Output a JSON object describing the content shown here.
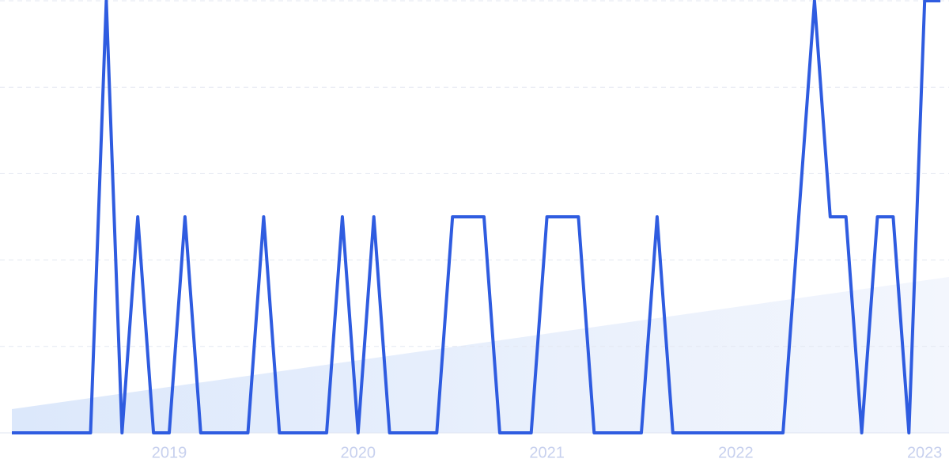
{
  "chart_data": {
    "type": "line",
    "categories": [
      null,
      null,
      null,
      null,
      null,
      null,
      null,
      null,
      null,
      null,
      "2019",
      null,
      null,
      null,
      null,
      null,
      null,
      null,
      null,
      null,
      null,
      null,
      "2020",
      null,
      null,
      null,
      null,
      null,
      null,
      null,
      null,
      null,
      null,
      null,
      "2021",
      null,
      null,
      null,
      null,
      null,
      null,
      null,
      null,
      null,
      null,
      null,
      "2022",
      null,
      null,
      null,
      null,
      null,
      null,
      null,
      null,
      null,
      null,
      null,
      "2023",
      null
    ],
    "series": [
      {
        "color": "#2f5ce0",
        "values": [
          0,
          0,
          0,
          0,
          0,
          0,
          2,
          0,
          1,
          0,
          0,
          1,
          0,
          0,
          0,
          0,
          1,
          0,
          0,
          0,
          0,
          1,
          0,
          1,
          0,
          0,
          0,
          0,
          1,
          1,
          1,
          0,
          0,
          0,
          1,
          1,
          1,
          0,
          0,
          0,
          0,
          1,
          0,
          0,
          0,
          0,
          0,
          0,
          0,
          0,
          1,
          2,
          1,
          1,
          0,
          1,
          1,
          0,
          2,
          2
        ]
      }
    ],
    "ylim": [
      0,
      2
    ],
    "yticks": [
      0,
      0.4,
      0.8,
      1.2,
      1.6,
      2
    ],
    "grid": true
  }
}
